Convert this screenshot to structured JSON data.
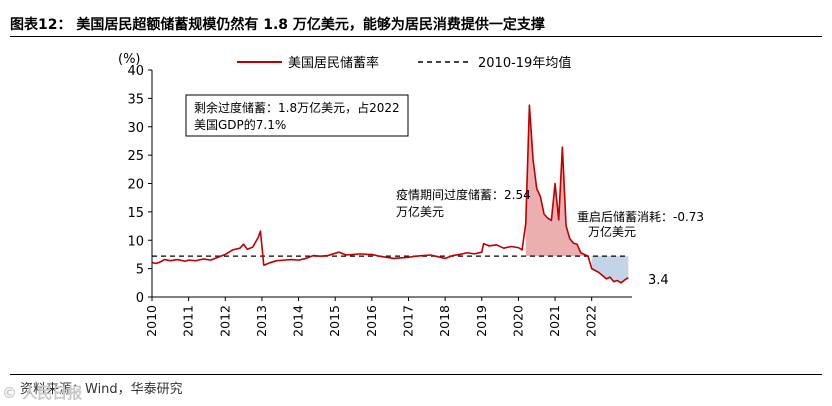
{
  "header": {
    "title": "图表12：  美国居民超额储蓄规模仍然有 1.8 万亿美元，能够为居民消费提供一定支撑"
  },
  "footer": {
    "source": "资料来源：Wind，华泰研究",
    "watermark": "© 人民日报"
  },
  "chart_data": {
    "type": "line",
    "ylabel": "(%)",
    "ylim": [
      0,
      40
    ],
    "yticks": [
      0,
      5,
      10,
      15,
      20,
      25,
      30,
      35,
      40
    ],
    "xlim": [
      2010,
      2023.1
    ],
    "xticks": [
      2010,
      2011,
      2012,
      2013,
      2014,
      2015,
      2016,
      2017,
      2018,
      2019,
      2020,
      2021,
      2022
    ],
    "grid": false,
    "legend_position": "top",
    "series": [
      {
        "name": "美国居民储蓄率",
        "color": "#c00000",
        "points": [
          [
            2010.0,
            6.1
          ],
          [
            2010.1,
            5.9
          ],
          [
            2010.2,
            6.1
          ],
          [
            2010.35,
            6.6
          ],
          [
            2010.5,
            6.4
          ],
          [
            2010.7,
            6.6
          ],
          [
            2010.9,
            6.3
          ],
          [
            2011.0,
            6.5
          ],
          [
            2011.2,
            6.4
          ],
          [
            2011.4,
            6.7
          ],
          [
            2011.6,
            6.5
          ],
          [
            2011.8,
            7.0
          ],
          [
            2012.0,
            7.5
          ],
          [
            2012.2,
            8.3
          ],
          [
            2012.4,
            8.6
          ],
          [
            2012.5,
            9.3
          ],
          [
            2012.6,
            8.4
          ],
          [
            2012.75,
            8.8
          ],
          [
            2012.9,
            10.5
          ],
          [
            2012.96,
            11.6
          ],
          [
            2013.05,
            5.6
          ],
          [
            2013.2,
            6.0
          ],
          [
            2013.4,
            6.4
          ],
          [
            2013.6,
            6.5
          ],
          [
            2013.8,
            6.6
          ],
          [
            2014.0,
            6.5
          ],
          [
            2014.2,
            6.8
          ],
          [
            2014.4,
            7.3
          ],
          [
            2014.6,
            7.2
          ],
          [
            2014.8,
            7.3
          ],
          [
            2015.0,
            7.7
          ],
          [
            2015.1,
            7.9
          ],
          [
            2015.3,
            7.4
          ],
          [
            2015.5,
            7.5
          ],
          [
            2015.7,
            7.6
          ],
          [
            2015.9,
            7.5
          ],
          [
            2016.0,
            7.5
          ],
          [
            2016.2,
            7.2
          ],
          [
            2016.4,
            7.0
          ],
          [
            2016.6,
            6.8
          ],
          [
            2016.8,
            6.9
          ],
          [
            2017.0,
            7.0
          ],
          [
            2017.2,
            7.2
          ],
          [
            2017.4,
            7.3
          ],
          [
            2017.6,
            7.4
          ],
          [
            2017.8,
            7.1
          ],
          [
            2018.0,
            6.8
          ],
          [
            2018.2,
            7.3
          ],
          [
            2018.4,
            7.5
          ],
          [
            2018.6,
            7.8
          ],
          [
            2018.8,
            7.6
          ],
          [
            2019.0,
            7.9
          ],
          [
            2019.05,
            9.4
          ],
          [
            2019.2,
            9.0
          ],
          [
            2019.4,
            9.2
          ],
          [
            2019.6,
            8.6
          ],
          [
            2019.8,
            8.9
          ],
          [
            2020.0,
            8.7
          ],
          [
            2020.1,
            8.3
          ],
          [
            2020.2,
            12.9
          ],
          [
            2020.3,
            33.8
          ],
          [
            2020.4,
            24.2
          ],
          [
            2020.5,
            19.1
          ],
          [
            2020.6,
            17.7
          ],
          [
            2020.7,
            14.6
          ],
          [
            2020.8,
            13.9
          ],
          [
            2020.9,
            13.5
          ],
          [
            2021.0,
            20.0
          ],
          [
            2021.1,
            13.6
          ],
          [
            2021.2,
            26.4
          ],
          [
            2021.3,
            12.6
          ],
          [
            2021.4,
            10.3
          ],
          [
            2021.5,
            9.5
          ],
          [
            2021.6,
            9.3
          ],
          [
            2021.7,
            7.8
          ],
          [
            2021.8,
            7.5
          ],
          [
            2021.9,
            7.2
          ],
          [
            2022.0,
            5.0
          ],
          [
            2022.2,
            4.3
          ],
          [
            2022.4,
            3.2
          ],
          [
            2022.5,
            3.5
          ],
          [
            2022.6,
            2.7
          ],
          [
            2022.7,
            2.9
          ],
          [
            2022.8,
            2.5
          ],
          [
            2022.9,
            3.0
          ],
          [
            2023.0,
            3.4
          ]
        ]
      },
      {
        "name": "2010-19年均值",
        "color": "#000000",
        "dashed": true,
        "value": 7.2,
        "x_range": [
          2010,
          2023
        ]
      }
    ],
    "shaded_areas": [
      {
        "color": "#e8a0a3",
        "from": 2020.2,
        "to": 2021.9
      },
      {
        "color": "#b9cde5",
        "from": 2022.0,
        "to": 2023.0
      }
    ],
    "annotations": [
      {
        "line1": "剩余过度储蓄：1.8万亿美元，占2022",
        "line2": "美国GDP的7.1%",
        "boxed": true
      },
      {
        "line1": "疫情期间过度储蓄：2.54",
        "line2": "万亿美元"
      },
      {
        "line1": "重启后储蓄消耗：-0.73",
        "line2": "万亿美元"
      },
      {
        "line1": "3.4"
      }
    ]
  }
}
